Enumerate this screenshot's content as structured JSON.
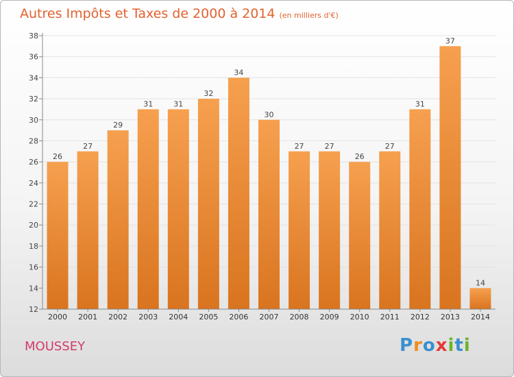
{
  "header": {
    "title": "Autres Impôts et Taxes de 2000 à 2014",
    "unit": "(en milliers d'€)"
  },
  "footer": {
    "place": "MOUSSEY",
    "logo_text": "Proxiti",
    "logo_letters": [
      {
        "char": "P",
        "color": "#3a8fd0"
      },
      {
        "char": "r",
        "color": "#f08c1e"
      },
      {
        "char": "o",
        "color": "#3a8fd0"
      },
      {
        "char": "x",
        "color": "#e53935"
      },
      {
        "char": "i",
        "color": "#6ab42d"
      },
      {
        "char": "t",
        "color": "#3a8fd0"
      },
      {
        "char": "i",
        "color": "#6ab42d"
      }
    ]
  },
  "colors": {
    "bar_top": "#f6a04f",
    "bar_bottom": "#d9741f",
    "title": "#e2612e",
    "place": "#d13b69",
    "axis": "#888888",
    "grid": "#e2e2e2"
  },
  "chart_data": {
    "type": "bar",
    "title": "Autres Impôts et Taxes de 2000 à 2014",
    "subtitle": "(en milliers d'€)",
    "categories": [
      "2000",
      "2001",
      "2002",
      "2003",
      "2004",
      "2005",
      "2006",
      "2007",
      "2008",
      "2009",
      "2010",
      "2011",
      "2012",
      "2013",
      "2014"
    ],
    "values": [
      26,
      27,
      29,
      31,
      31,
      32,
      34,
      30,
      27,
      27,
      26,
      27,
      31,
      37,
      14
    ],
    "ylim": [
      12,
      38
    ],
    "yticks": [
      12,
      14,
      16,
      18,
      20,
      22,
      24,
      26,
      28,
      30,
      32,
      34,
      36,
      38
    ],
    "grid": true,
    "data_labels": true
  }
}
